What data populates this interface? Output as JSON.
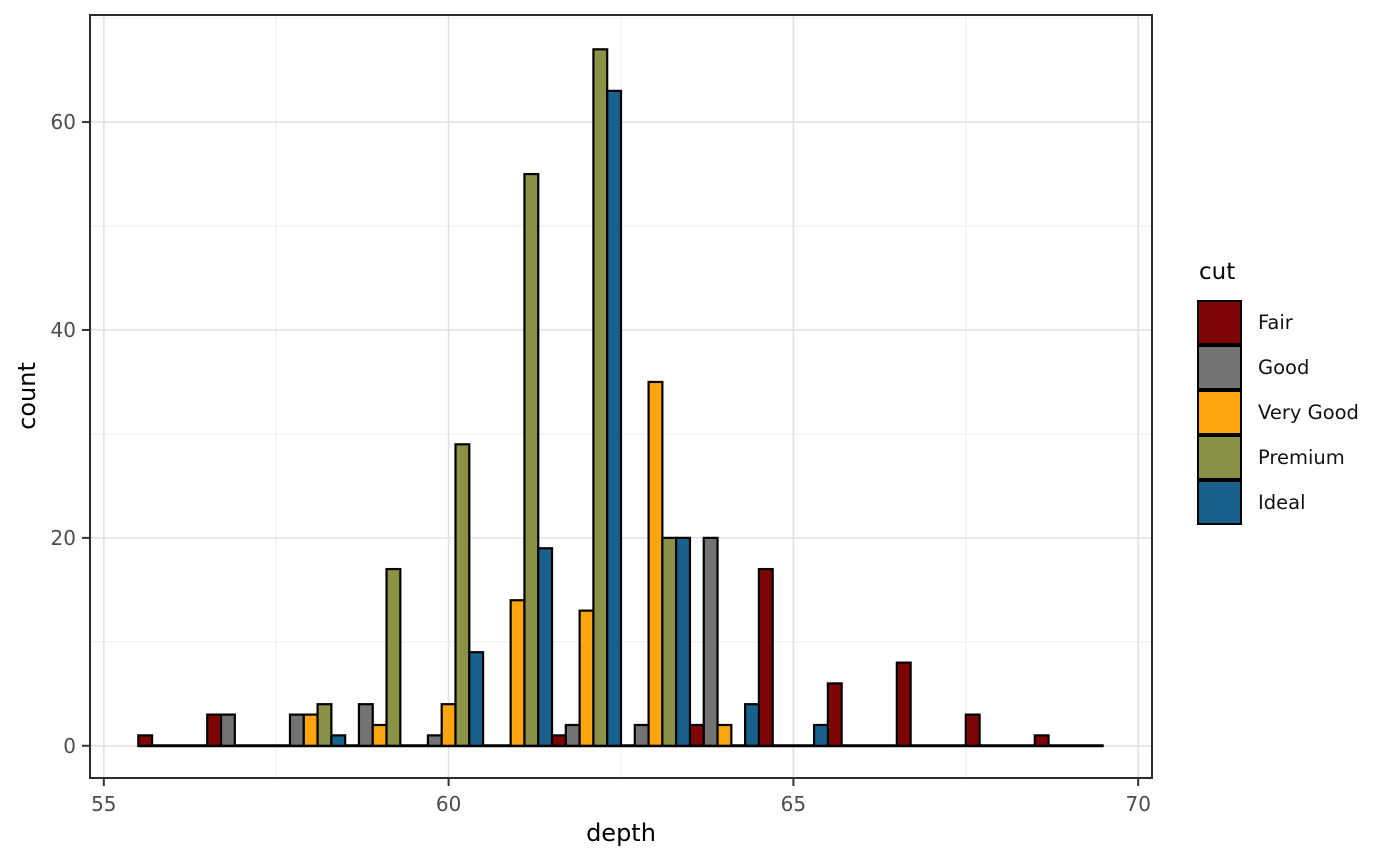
{
  "chart_data": {
    "type": "bar",
    "subtype": "dodged-histogram",
    "title": "",
    "xlabel": "depth",
    "ylabel": "count",
    "bins": [
      56,
      57,
      58,
      59,
      60,
      61,
      62,
      63,
      64,
      65,
      66,
      67,
      68,
      69
    ],
    "binwidth": 1,
    "series": [
      {
        "name": "Fair",
        "color": "#7E0505",
        "values": [
          1,
          3,
          0,
          0,
          0,
          0,
          1,
          0,
          2,
          17,
          6,
          8,
          3,
          1
        ]
      },
      {
        "name": "Good",
        "color": "#737373",
        "values": [
          0,
          3,
          3,
          4,
          1,
          0,
          2,
          2,
          20,
          0,
          0,
          0,
          0,
          0
        ]
      },
      {
        "name": "Very Good",
        "color": "#FCA50E",
        "values": [
          0,
          0,
          3,
          2,
          4,
          14,
          13,
          35,
          2,
          0,
          0,
          0,
          0,
          0
        ]
      },
      {
        "name": "Premium",
        "color": "#8B9246",
        "values": [
          0,
          0,
          4,
          17,
          29,
          55,
          67,
          20,
          0,
          0,
          0,
          0,
          0,
          0
        ]
      },
      {
        "name": "Ideal",
        "color": "#17618C",
        "values": [
          0,
          0,
          1,
          0,
          9,
          19,
          63,
          20,
          4,
          2,
          0,
          0,
          0,
          0
        ]
      }
    ],
    "x_ticks": [
      55,
      60,
      65,
      70
    ],
    "y_ticks": [
      0,
      20,
      40,
      60
    ],
    "x_minor_gridlines": [
      57.5,
      62.5,
      67.5
    ],
    "y_minor_gridlines": [
      10,
      30,
      50,
      70
    ],
    "xlim": [
      54.8,
      70.2
    ],
    "ylim": [
      -3.1,
      70.3
    ],
    "grid": true,
    "legend": {
      "title": "cut",
      "position": "right"
    },
    "style_colors": {
      "panel_border": "#2B2B2B",
      "grid_major": "#E2E2E2",
      "grid_minor": "#EFEFEF",
      "tick_mark": "#333333",
      "tick_label": "#4D4D4D",
      "axis_title": "#000000",
      "bar_outline": "#000000",
      "baseline": "#000000"
    }
  }
}
